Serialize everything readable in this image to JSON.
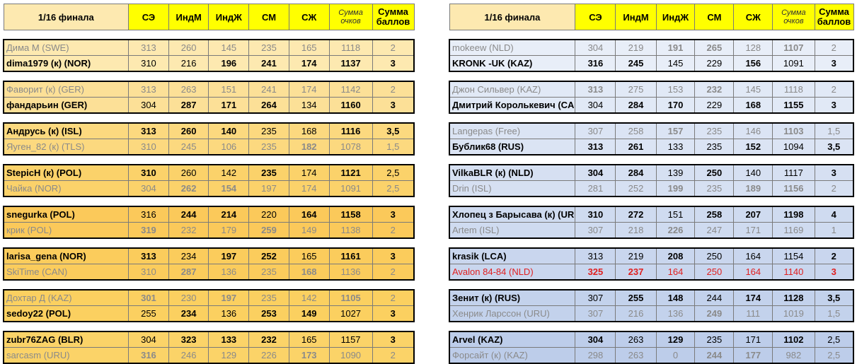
{
  "headers": {
    "round": "1/16 финала",
    "se": "СЭ",
    "indm": "ИндМ",
    "indzh": "ИндЖ",
    "sm": "СМ",
    "szh": "СЖ",
    "sum_points_line1": "Сумма",
    "sum_points_line2": "очков",
    "sum_score_line1": "Сумма",
    "sum_score_line2": "баллов"
  },
  "left_pairs": [
    [
      {
        "name": "Дима М (SWE)",
        "se": "313",
        "indm": "260",
        "indzh": "145",
        "sm": "235",
        "szh": "165",
        "total": "1118",
        "score": "2"
      },
      {
        "name": "dima1979 (к) (NOR)",
        "se": "310",
        "indm": "216",
        "indzh": "196",
        "sm": "241",
        "szh": "174",
        "total": "1137",
        "score": "3"
      }
    ],
    [
      {
        "name": "Фаворит (к) (GER)",
        "se": "313",
        "indm": "263",
        "indzh": "151",
        "sm": "241",
        "szh": "174",
        "total": "1142",
        "score": "2"
      },
      {
        "name": "фандарьин (GER)",
        "se": "304",
        "indm": "287",
        "indzh": "171",
        "sm": "264",
        "szh": "134",
        "total": "1160",
        "score": "3"
      }
    ],
    [
      {
        "name": "Андрусь (к) (ISL)",
        "se": "313",
        "indm": "260",
        "indzh": "140",
        "sm": "235",
        "szh": "168",
        "total": "1116",
        "score": "3,5"
      },
      {
        "name": "Яуген_82 (к) (TLS)",
        "se": "310",
        "indm": "245",
        "indzh": "106",
        "sm": "235",
        "szh": "182",
        "total": "1078",
        "score": "1,5"
      }
    ],
    [
      {
        "name": "StepicH (к) (POL)",
        "se": "310",
        "indm": "260",
        "indzh": "142",
        "sm": "235",
        "szh": "174",
        "total": "1121",
        "score": "2,5"
      },
      {
        "name": "Чайка (NOR)",
        "se": "304",
        "indm": "262",
        "indzh": "154",
        "sm": "197",
        "szh": "174",
        "total": "1091",
        "score": "2,5"
      }
    ],
    [
      {
        "name": "snegurka (POL)",
        "se": "316",
        "indm": "244",
        "indzh": "214",
        "sm": "220",
        "szh": "164",
        "total": "1158",
        "score": "3"
      },
      {
        "name": "крик (POL)",
        "se": "319",
        "indm": "232",
        "indzh": "179",
        "sm": "259",
        "szh": "149",
        "total": "1138",
        "score": "2"
      }
    ],
    [
      {
        "name": "larisa_gena (NOR)",
        "se": "313",
        "indm": "234",
        "indzh": "197",
        "sm": "252",
        "szh": "165",
        "total": "1161",
        "score": "3"
      },
      {
        "name": "SkiTime (CAN)",
        "se": "310",
        "indm": "287",
        "indzh": "136",
        "sm": "235",
        "szh": "168",
        "total": "1136",
        "score": "2"
      }
    ],
    [
      {
        "name": "Дохтар Д (KAZ)",
        "se": "301",
        "indm": "230",
        "indzh": "197",
        "sm": "235",
        "szh": "142",
        "total": "1105",
        "score": "2"
      },
      {
        "name": "sedoy22 (POL)",
        "se": "255",
        "indm": "234",
        "indzh": "136",
        "sm": "253",
        "szh": "149",
        "total": "1027",
        "score": "3"
      }
    ],
    [
      {
        "name": "zubr76ZAG (BLR)",
        "se": "304",
        "indm": "323",
        "indzh": "133",
        "sm": "232",
        "szh": "165",
        "total": "1157",
        "score": "3"
      },
      {
        "name": "sarcasm (URU)",
        "se": "316",
        "indm": "246",
        "indzh": "129",
        "sm": "226",
        "szh": "173",
        "total": "1090",
        "score": "2"
      }
    ]
  ],
  "right_pairs": [
    [
      {
        "name": "mokeew (NLD)",
        "se": "304",
        "indm": "219",
        "indzh": "191",
        "sm": "265",
        "szh": "128",
        "total": "1107",
        "score": "2"
      },
      {
        "name": "KRONK -UK (KAZ)",
        "se": "316",
        "indm": "245",
        "indzh": "145",
        "sm": "229",
        "szh": "156",
        "total": "1091",
        "score": "3"
      }
    ],
    [
      {
        "name": "Джон Сильвер (KAZ)",
        "se": "313",
        "indm": "275",
        "indzh": "153",
        "sm": "232",
        "szh": "145",
        "total": "1118",
        "score": "2"
      },
      {
        "name": "Дмитрий Королькевич (CAN)",
        "se": "304",
        "indm": "284",
        "indzh": "170",
        "sm": "229",
        "szh": "168",
        "total": "1155",
        "score": "3"
      }
    ],
    [
      {
        "name": "Langepas (Free)",
        "se": "307",
        "indm": "258",
        "indzh": "157",
        "sm": "235",
        "szh": "146",
        "total": "1103",
        "score": "1,5"
      },
      {
        "name": "Бублик68 (RUS)",
        "se": "313",
        "indm": "261",
        "indzh": "133",
        "sm": "235",
        "szh": "152",
        "total": "1094",
        "score": "3,5"
      }
    ],
    [
      {
        "name": "VilkaBLR (к) (NLD)",
        "se": "304",
        "indm": "284",
        "indzh": "139",
        "sm": "250",
        "szh": "140",
        "total": "1117",
        "score": "3"
      },
      {
        "name": "Drin (ISL)",
        "se": "281",
        "indm": "252",
        "indzh": "199",
        "sm": "235",
        "szh": "189",
        "total": "1156",
        "score": "2"
      }
    ],
    [
      {
        "name": "Хлопец з Барысава (к) (URU)",
        "se": "310",
        "indm": "272",
        "indzh": "151",
        "sm": "258",
        "szh": "207",
        "total": "1198",
        "score": "4"
      },
      {
        "name": "Artem (ISL)",
        "se": "307",
        "indm": "218",
        "indzh": "226",
        "sm": "247",
        "szh": "171",
        "total": "1169",
        "score": "1"
      }
    ],
    [
      {
        "name": "krasik (LCA)",
        "se": "313",
        "indm": "219",
        "indzh": "208",
        "sm": "250",
        "szh": "164",
        "total": "1154",
        "score": "2"
      },
      {
        "name": "Avalon 84-84 (NLD)",
        "se": "325",
        "indm": "237",
        "indzh": "164",
        "sm": "250",
        "szh": "164",
        "total": "1140",
        "score": "3"
      }
    ],
    [
      {
        "name": "Зенит (к) (RUS)",
        "se": "307",
        "indm": "255",
        "indzh": "148",
        "sm": "244",
        "szh": "174",
        "total": "1128",
        "score": "3,5"
      },
      {
        "name": "Хенрик Ларссон (URU)",
        "se": "307",
        "indm": "216",
        "indzh": "136",
        "sm": "249",
        "szh": "111",
        "total": "1019",
        "score": "1,5"
      }
    ],
    [
      {
        "name": "Arvel (KAZ)",
        "se": "304",
        "indm": "263",
        "indzh": "129",
        "sm": "235",
        "szh": "171",
        "total": "1102",
        "score": "2,5"
      },
      {
        "name": "Форсайт (к) (KAZ)",
        "se": "298",
        "indm": "263",
        "indzh": "0",
        "sm": "244",
        "szh": "177",
        "total": "982",
        "score": "2,5"
      }
    ]
  ],
  "row_styles": {
    "left": [
      [
        "l",
        "w"
      ],
      [
        "l",
        "w"
      ],
      [
        "w",
        "l"
      ],
      [
        "w",
        "l"
      ],
      [
        "w",
        "l"
      ],
      [
        "w",
        "l"
      ],
      [
        "l",
        "w"
      ],
      [
        "w",
        "l"
      ]
    ],
    "right": [
      [
        "l",
        "w"
      ],
      [
        "l",
        "w"
      ],
      [
        "l",
        "w"
      ],
      [
        "w",
        "l"
      ],
      [
        "w",
        "l"
      ],
      [
        "w",
        "r"
      ],
      [
        "w",
        "l"
      ],
      [
        "w",
        "l"
      ]
    ]
  }
}
